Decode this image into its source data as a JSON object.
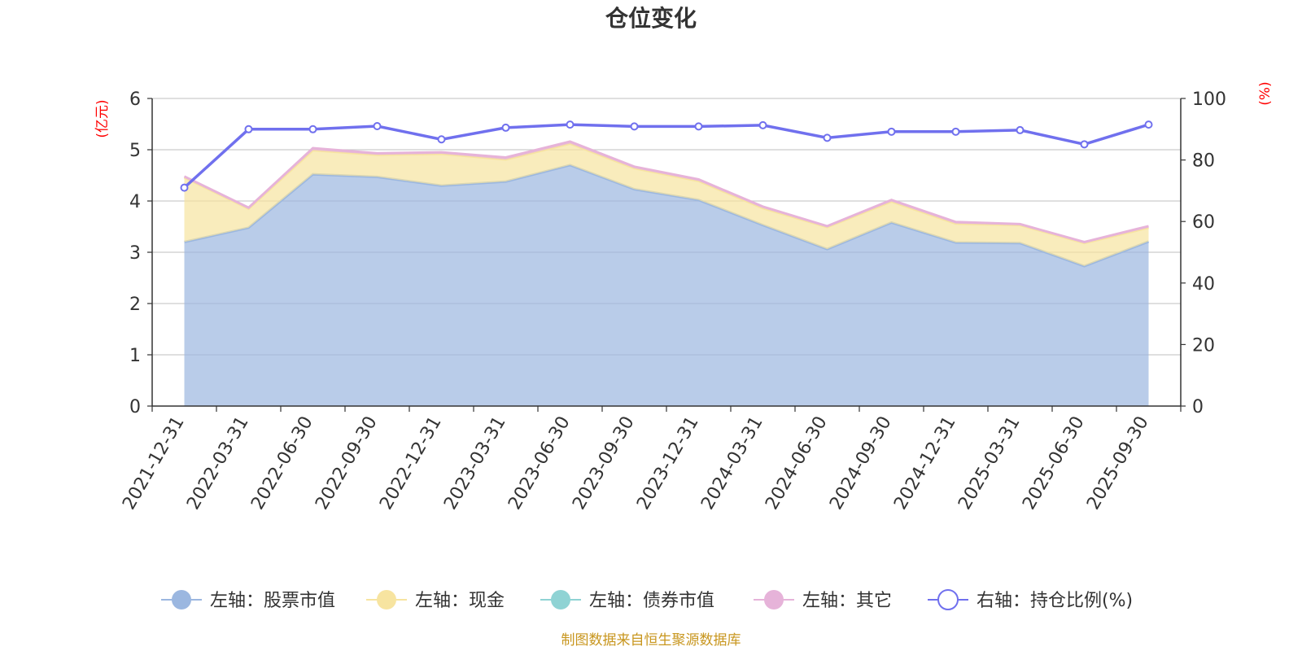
{
  "chart_data": {
    "type": "area",
    "title": "仓位变化",
    "categories": [
      "2021-12-31",
      "2022-03-31",
      "2022-06-30",
      "2022-09-30",
      "2022-12-31",
      "2023-03-31",
      "2023-06-30",
      "2023-09-30",
      "2023-12-31",
      "2024-03-31",
      "2024-06-30",
      "2024-09-30",
      "2024-12-31",
      "2025-03-31",
      "2025-06-30",
      "2025-09-30"
    ],
    "left_axis": {
      "unit": "(亿元)",
      "ylim": [
        0,
        6
      ],
      "ticks": [
        0,
        1,
        2,
        3,
        4,
        5,
        6
      ]
    },
    "right_axis": {
      "unit": "(%)",
      "ylim": [
        0,
        100
      ],
      "ticks": [
        0,
        20,
        40,
        60,
        80,
        100
      ]
    },
    "grid": true,
    "legend_position": "bottom",
    "series": [
      {
        "name": "左轴：股票市值",
        "axis": "left",
        "kind": "stacked-area",
        "color": "#9bb7e0",
        "values": [
          3.2,
          3.48,
          4.52,
          4.47,
          4.3,
          4.38,
          4.7,
          4.23,
          4.02,
          3.53,
          3.06,
          3.58,
          3.19,
          3.18,
          2.73,
          3.21
        ]
      },
      {
        "name": "左轴：现金",
        "axis": "left",
        "kind": "stacked-area",
        "color": "#f7e4a0",
        "values": [
          1.26,
          0.37,
          0.47,
          0.43,
          0.62,
          0.43,
          0.42,
          0.41,
          0.37,
          0.33,
          0.43,
          0.41,
          0.37,
          0.35,
          0.45,
          0.27
        ]
      },
      {
        "name": "左轴：债券市值",
        "axis": "left",
        "kind": "stacked-area",
        "color": "#8fd3d4",
        "values": [
          0,
          0,
          0,
          0,
          0,
          0,
          0,
          0,
          0,
          0,
          0,
          0,
          0,
          0,
          0,
          0
        ]
      },
      {
        "name": "左轴：其它",
        "axis": "left",
        "kind": "stacked-area",
        "color": "#e6b3d9",
        "values": [
          0.02,
          0.02,
          0.04,
          0.03,
          0.03,
          0.04,
          0.04,
          0.03,
          0.03,
          0.03,
          0.02,
          0.03,
          0.03,
          0.02,
          0.02,
          0.03
        ]
      },
      {
        "name": "右轴：持仓比例(%)",
        "axis": "right",
        "kind": "line",
        "color": "#7070ee",
        "values": [
          71.0,
          90.0,
          90.0,
          91.0,
          86.7,
          90.5,
          91.5,
          90.9,
          90.9,
          91.3,
          87.2,
          89.2,
          89.2,
          89.7,
          85.1,
          91.5
        ]
      }
    ]
  },
  "footer": {
    "source": "制图数据来自恒生聚源数据库"
  }
}
